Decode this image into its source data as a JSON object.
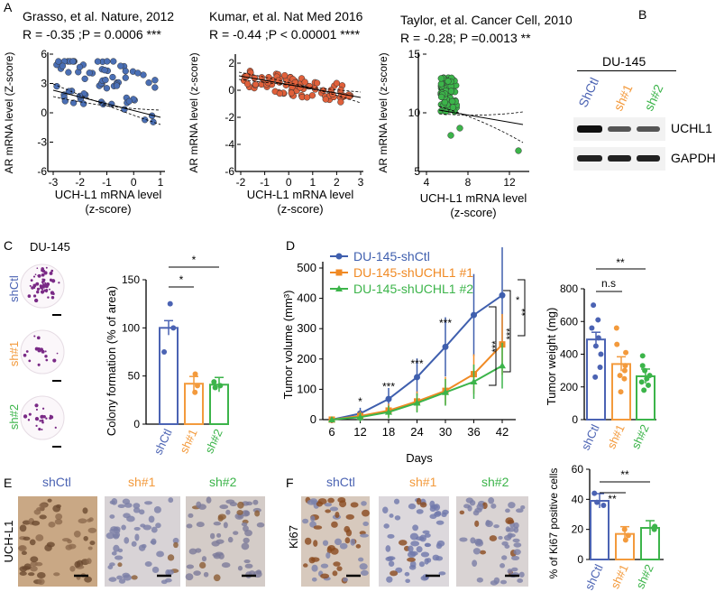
{
  "panels": {
    "A": "A",
    "B": "B",
    "C": "C",
    "D": "D",
    "E": "E",
    "F": "F"
  },
  "panelA": {
    "plots": [
      {
        "title": "Grasso, et al. Nature, 2012",
        "stat": "R = -0.35 ;P = 0.0006 ***",
        "ylabel": "AR mRNA level (Z-score)",
        "xlabel1": "UCH-L1 mRNA level",
        "xlabel2": "(z-score)",
        "xticks": [
          "-3",
          "-2",
          "-1",
          "0",
          "1"
        ],
        "yticks": [
          "6",
          "3",
          "0",
          "-3",
          "-6"
        ],
        "color": "#4a6fb5"
      },
      {
        "title": "Kumar, et al. Nat Med 2016",
        "stat": "R = -0.44 ;P < 0.00001 ****",
        "ylabel": "AR mRNA level (z-score)",
        "xlabel1": "UCH-L1 mRNA level",
        "xlabel2": "(z-score)",
        "xticks": [
          "-2",
          "-1",
          "0",
          "1",
          "2",
          "3"
        ],
        "yticks": [
          "2",
          "0",
          "-2",
          "-4",
          "-6"
        ],
        "color": "#e0603a"
      },
      {
        "title": "Taylor, et al. Cancer Cell, 2010",
        "stat": "R = -0.28; P =0.0013 **",
        "ylabel": "AR mRNA level (z-score)",
        "xlabel1": "UCH-L1 mRNA level",
        "xlabel2": "(z-score)",
        "xticks": [
          "4",
          "8",
          "12"
        ],
        "yticks": [
          "15",
          "10",
          "5"
        ],
        "color": "#3cb44a"
      }
    ]
  },
  "panelB": {
    "cell_line": "DU-145",
    "lanes": [
      "ShCtl",
      "sh#1",
      "sh#2"
    ],
    "bands": [
      "UCHL1",
      "GAPDH"
    ]
  },
  "panelC": {
    "cell_line": "DU-145",
    "row_labels": [
      "shCtl",
      "sh#1",
      "sh#2"
    ],
    "chart_data": {
      "type": "bar",
      "categories": [
        "shCtl",
        "sh#1",
        "sh#2"
      ],
      "values": [
        100,
        42,
        41
      ],
      "ylabel": "Colony formation (% of area)",
      "ylim": [
        0,
        150
      ],
      "yticks": [
        "0",
        "50",
        "100",
        "150"
      ],
      "sig": [
        "*",
        "*"
      ]
    }
  },
  "panelD": {
    "chart_data": {
      "type": "line",
      "x": [
        6,
        12,
        18,
        24,
        30,
        36,
        42
      ],
      "xticks": [
        "6",
        "12",
        "18",
        "24",
        "30",
        "36",
        "42"
      ],
      "xlabel": "Days",
      "ylabel": "Tumor volume (mm³)",
      "yticks": [
        "0",
        "100",
        "200",
        "300",
        "400",
        "500"
      ],
      "ylim": [
        0,
        500
      ],
      "series": [
        {
          "name": "DU-145-shCtl",
          "values": [
            0,
            20,
            68,
            140,
            240,
            345,
            410
          ],
          "color": "#3f5fae"
        },
        {
          "name": "DU-145-shUCHL1 #1",
          "values": [
            0,
            12,
            30,
            60,
            95,
            150,
            248
          ],
          "color": "#f08a24"
        },
        {
          "name": "DU-145-shUCHL1 #2",
          "values": [
            0,
            8,
            25,
            55,
            90,
            125,
            178
          ],
          "color": "#3cb44a"
        }
      ],
      "sig": [
        "*",
        "***",
        "***",
        "***",
        "***",
        "***",
        "*",
        "**"
      ]
    },
    "weight": {
      "type": "bar",
      "categories": [
        "shCtl",
        "sh#1",
        "sh#2"
      ],
      "values": [
        490,
        340,
        265
      ],
      "ylabel": "Tumor weight (mg)",
      "ylim": [
        0,
        800
      ],
      "yticks": [
        "0",
        "200",
        "400",
        "600",
        "800"
      ],
      "sig": [
        "n.s",
        "**"
      ]
    }
  },
  "panelE": {
    "row_label": "UCH-L1",
    "headers": [
      "shCtl",
      "sh#1",
      "sh#2"
    ]
  },
  "panelF": {
    "row_label": "Ki67",
    "headers": [
      "shCtl",
      "sh#1",
      "sh#2"
    ],
    "chart_data": {
      "type": "bar",
      "categories": [
        "shCtl",
        "sh#1",
        "sh#2"
      ],
      "values": [
        39,
        17,
        21
      ],
      "ylabel": "% of Ki67 positive cells",
      "ylim": [
        0,
        60
      ],
      "yticks": [
        "0",
        "20",
        "40",
        "60"
      ],
      "sig": [
        "**",
        "**"
      ]
    }
  },
  "colors": {
    "blue": "#4b63b3",
    "orange": "#f39a3c",
    "green": "#3cb44a"
  }
}
